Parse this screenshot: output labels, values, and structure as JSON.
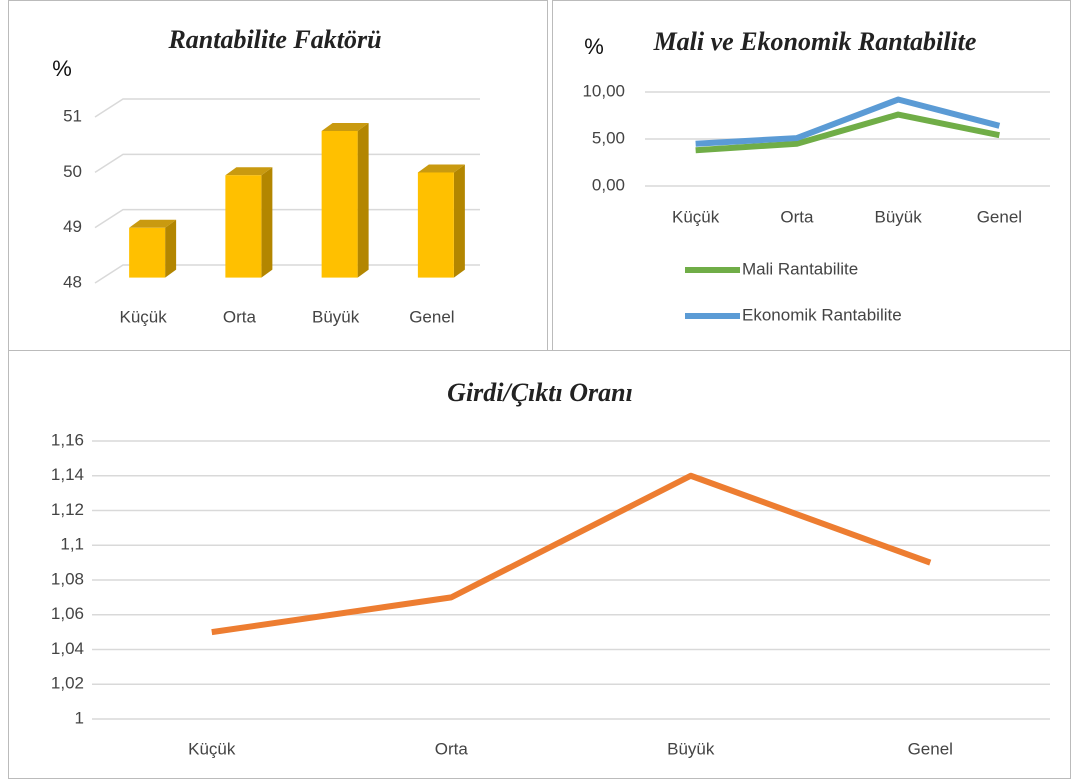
{
  "chart_data": [
    {
      "type": "bar3d",
      "title": "Rantabilite Faktörü",
      "y_label": "%",
      "categories": [
        "Küçük",
        "Orta",
        "Büyük",
        "Genel"
      ],
      "values": [
        48.9,
        49.85,
        50.65,
        49.9
      ],
      "color": "#ffc000",
      "ylim": [
        48,
        51
      ],
      "yticks": [
        48,
        49,
        50,
        51
      ],
      "grid": true
    },
    {
      "type": "line",
      "title": "Mali ve Ekonomik Rantabilite",
      "y_label": "%",
      "categories": [
        "Küçük",
        "Orta",
        "Büyük",
        "Genel"
      ],
      "series": [
        {
          "name": "Mali Rantabilite",
          "color": "#70ad47",
          "values": [
            3.8,
            4.5,
            7.6,
            5.4
          ]
        },
        {
          "name": "Ekonomik Rantabilite",
          "color": "#5b9bd5",
          "values": [
            4.5,
            5.1,
            9.2,
            6.4
          ]
        }
      ],
      "ylim": [
        0,
        10
      ],
      "yticks": [
        {
          "value": 0,
          "label": "0,00"
        },
        {
          "value": 5,
          "label": "5,00"
        },
        {
          "value": 10,
          "label": "10,00"
        }
      ],
      "grid": true,
      "legend": "bottom"
    },
    {
      "type": "line",
      "title": "Girdi/Çıktı Oranı",
      "categories": [
        "Küçük",
        "Orta",
        "Büyük",
        "Genel"
      ],
      "series": [
        {
          "color": "#ed7d31",
          "values": [
            1.05,
            1.07,
            1.14,
            1.09
          ]
        }
      ],
      "ylim": [
        1,
        1.16
      ],
      "yticks": [
        1,
        {
          "value": 1.02,
          "label": "1,02"
        },
        {
          "value": 1.04,
          "label": "1,04"
        },
        {
          "value": 1.06,
          "label": "1,06"
        },
        {
          "value": 1.08,
          "label": "1,08"
        },
        {
          "value": 1.1,
          "label": "1,1"
        },
        {
          "value": 1.12,
          "label": "1,12"
        },
        {
          "value": 1.14,
          "label": "1,14"
        },
        {
          "value": 1.16,
          "label": "1,16"
        }
      ],
      "grid": true
    }
  ]
}
